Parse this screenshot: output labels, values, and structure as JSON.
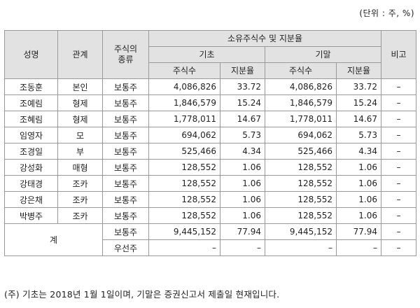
{
  "unit_note": "(단위 : 주, %)",
  "header": {
    "name": "성명",
    "relation": "관계",
    "stock_type": "주식의 종류",
    "holdings": "소유주식수 및 지분율",
    "beginning": "기초",
    "ending": "기말",
    "shares": "주식수",
    "ratio": "지분율",
    "remarks": "비고"
  },
  "rows": [
    {
      "name": "조동훈",
      "relation": "본인",
      "type": "보통주",
      "begin_shares": "4,086,826",
      "begin_ratio": "33.72",
      "end_shares": "4,086,826",
      "end_ratio": "33.72",
      "remarks": "–"
    },
    {
      "name": "조예림",
      "relation": "형제",
      "type": "보통주",
      "begin_shares": "1,846,579",
      "begin_ratio": "15.24",
      "end_shares": "1,846,579",
      "end_ratio": "15.24",
      "remarks": "–"
    },
    {
      "name": "조혜림",
      "relation": "형제",
      "type": "보통주",
      "begin_shares": "1,778,011",
      "begin_ratio": "14.67",
      "end_shares": "1,778,011",
      "end_ratio": "14.67",
      "remarks": "–"
    },
    {
      "name": "임영자",
      "relation": "모",
      "type": "보통주",
      "begin_shares": "694,062",
      "begin_ratio": "5.73",
      "end_shares": "694,062",
      "end_ratio": "5.73",
      "remarks": "–"
    },
    {
      "name": "조경일",
      "relation": "부",
      "type": "보통주",
      "begin_shares": "525,466",
      "begin_ratio": "4.34",
      "end_shares": "525,466",
      "end_ratio": "4.34",
      "remarks": "–"
    },
    {
      "name": "강성화",
      "relation": "매형",
      "type": "보통주",
      "begin_shares": "128,552",
      "begin_ratio": "1.06",
      "end_shares": "128,552",
      "end_ratio": "1.06",
      "remarks": "–"
    },
    {
      "name": "강태경",
      "relation": "조카",
      "type": "보통주",
      "begin_shares": "128,552",
      "begin_ratio": "1.06",
      "end_shares": "128,552",
      "end_ratio": "1.06",
      "remarks": "–"
    },
    {
      "name": "강은채",
      "relation": "조카",
      "type": "보통주",
      "begin_shares": "128,552",
      "begin_ratio": "1.06",
      "end_shares": "128,552",
      "end_ratio": "1.06",
      "remarks": "–"
    },
    {
      "name": "박병주",
      "relation": "조카",
      "type": "보통주",
      "begin_shares": "128,552",
      "begin_ratio": "1.06",
      "end_shares": "128,552",
      "end_ratio": "1.06",
      "remarks": "–"
    }
  ],
  "total": {
    "label": "계",
    "rows": [
      {
        "type": "보통주",
        "begin_shares": "9,445,152",
        "begin_ratio": "77.94",
        "end_shares": "9,445,152",
        "end_ratio": "77.94",
        "remarks": "–"
      },
      {
        "type": "우선주",
        "begin_shares": "–",
        "begin_ratio": "–",
        "end_shares": "–",
        "end_ratio": "–",
        "remarks": "–"
      }
    ]
  },
  "footnote": "(주) 기초는 2018년 1월 1일이며, 기말은 증권신고서 제출일 현재입니다."
}
